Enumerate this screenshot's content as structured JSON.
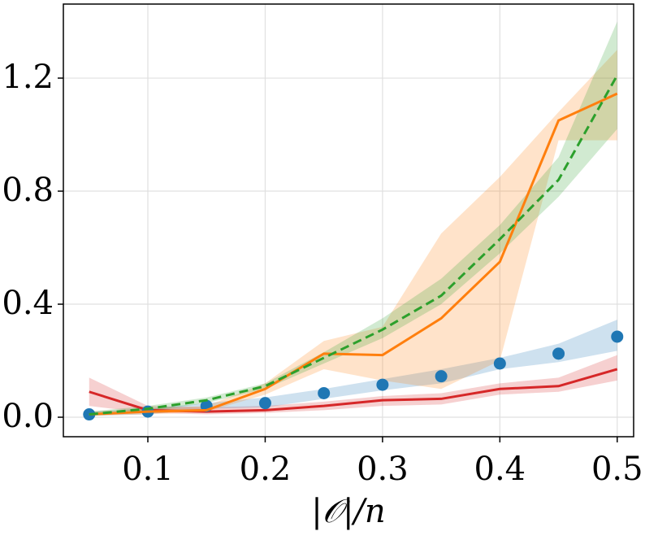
{
  "chart_data": {
    "type": "line",
    "xlabel": "|𝒪|/n",
    "x": [
      0.05,
      0.1,
      0.15,
      0.2,
      0.25,
      0.3,
      0.35,
      0.4,
      0.45,
      0.5
    ],
    "xlim": [
      0.028,
      0.514
    ],
    "xticks": [
      0.1,
      0.2,
      0.3,
      0.4,
      0.5
    ],
    "ylim": [
      -0.069,
      1.462
    ],
    "yticks": [
      {
        "value": 0,
        "label": "0.0"
      },
      0.4,
      0.8,
      1.2
    ],
    "grid": true,
    "series": [
      {
        "color": "#d62728",
        "style": "solid",
        "values": [
          0.09,
          0.025,
          0.02,
          0.025,
          0.04,
          0.06,
          0.065,
          0.1,
          0.11,
          0.17
        ],
        "lower": [
          0.04,
          0.015,
          0.01,
          0.015,
          0.025,
          0.04,
          0.045,
          0.08,
          0.09,
          0.13
        ],
        "upper": [
          0.14,
          0.04,
          0.035,
          0.04,
          0.055,
          0.075,
          0.085,
          0.12,
          0.14,
          0.22
        ]
      },
      {
        "color": "#1f77b4",
        "style": "dots",
        "values": [
          0.01,
          0.02,
          0.04,
          0.05,
          0.085,
          0.115,
          0.145,
          0.19,
          0.225,
          0.285
        ],
        "lower": [
          0.005,
          0.01,
          0.03,
          0.035,
          0.065,
          0.095,
          0.12,
          0.17,
          0.195,
          0.235
        ],
        "upper": [
          0.02,
          0.03,
          0.05,
          0.07,
          0.1,
          0.135,
          0.17,
          0.21,
          0.26,
          0.345
        ]
      },
      {
        "color": "#ff7f0e",
        "style": "solid",
        "values": [
          0.01,
          0.02,
          0.025,
          0.1,
          0.225,
          0.22,
          0.35,
          0.55,
          1.05,
          1.145
        ],
        "lower": [
          0.005,
          0.01,
          0.02,
          0.08,
          0.17,
          0.13,
          0.1,
          0.2,
          0.98,
          0.98
        ],
        "upper": [
          0.02,
          0.03,
          0.04,
          0.12,
          0.27,
          0.32,
          0.65,
          0.85,
          1.08,
          1.3
        ]
      },
      {
        "color": "#2ca02c",
        "style": "dashed",
        "values": [
          0.01,
          0.03,
          0.06,
          0.11,
          0.21,
          0.31,
          0.43,
          0.63,
          0.84,
          1.21
        ],
        "lower": [
          0.005,
          0.02,
          0.05,
          0.1,
          0.19,
          0.28,
          0.4,
          0.58,
          0.78,
          1.02
        ],
        "upper": [
          0.02,
          0.04,
          0.07,
          0.12,
          0.23,
          0.35,
          0.49,
          0.68,
          0.92,
          1.4
        ]
      }
    ]
  }
}
